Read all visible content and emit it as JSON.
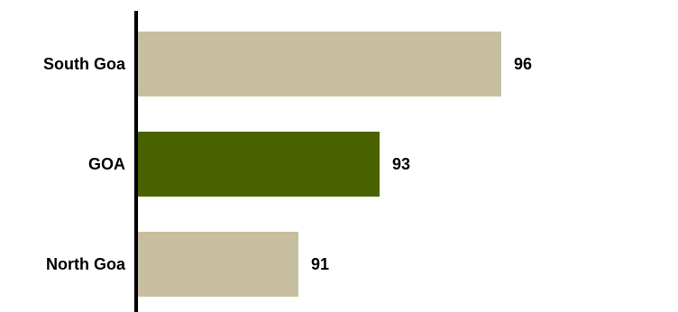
{
  "chart_data": {
    "type": "bar",
    "orientation": "horizontal",
    "categories": [
      "South Goa",
      "GOA",
      "North Goa"
    ],
    "values": [
      96,
      93,
      91
    ],
    "highlight_category": "GOA",
    "colors": {
      "default_bar": "#c6be9f",
      "highlight_bar": "#4a6100",
      "axis": "#000000"
    },
    "xlim": [
      87,
      100
    ],
    "title": "",
    "xlabel": "",
    "ylabel": "",
    "grid": false,
    "legend": "none",
    "data_labels": true
  }
}
